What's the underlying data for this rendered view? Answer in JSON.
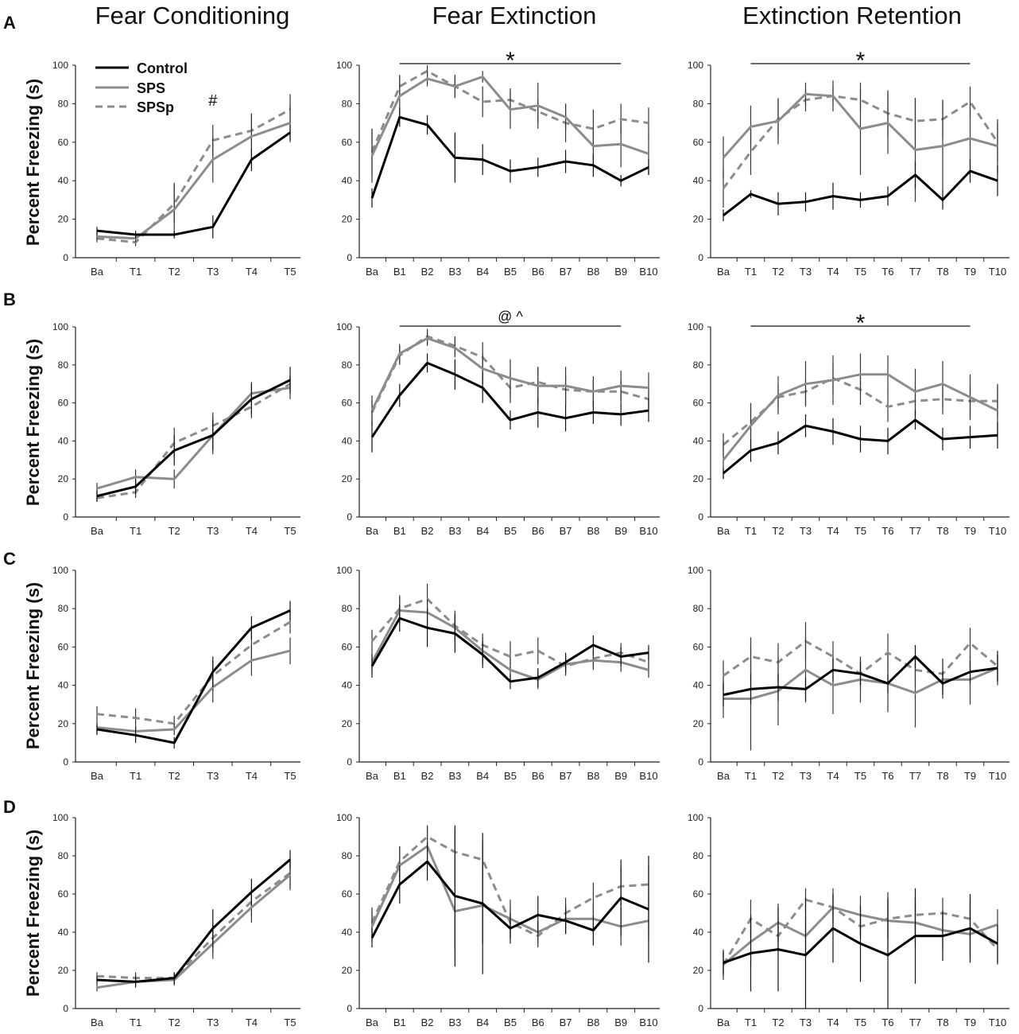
{
  "figure": {
    "column_titles": [
      "Fear Conditioning",
      "Fear Extinction",
      "Extinction Retention"
    ],
    "row_labels": [
      "A",
      "B",
      "C",
      "D"
    ],
    "ylabel": "Percent Freezing (s)",
    "legend": {
      "entries": [
        "Control",
        "SPS",
        "SPSp"
      ]
    },
    "colors": {
      "Control": "#000000",
      "SPS": "#8c8c8c",
      "SPSp": "#8c8c8c"
    },
    "ylim": [
      0,
      100
    ],
    "yticks": [
      "0",
      "20",
      "40",
      "60",
      "80",
      "100"
    ]
  },
  "chart_data": [
    {
      "id": "A1",
      "type": "line",
      "title": "Fear Conditioning",
      "row": "A",
      "categories": [
        "Ba",
        "T1",
        "T2",
        "T3",
        "T4",
        "T5"
      ],
      "annotations": [
        {
          "text": "#",
          "at": "T3"
        }
      ],
      "series": [
        {
          "name": "Control",
          "values": [
            14,
            12,
            12,
            16,
            51,
            65
          ],
          "err": [
            2,
            2,
            2,
            6,
            6,
            4
          ]
        },
        {
          "name": "SPS",
          "values": [
            11,
            10,
            25,
            51,
            63,
            70
          ],
          "err": [
            2,
            2,
            14,
            12,
            12,
            10
          ]
        },
        {
          "name": "SPSp",
          "values": [
            10,
            8,
            28,
            61,
            66,
            77
          ],
          "err": [
            2,
            2,
            10,
            8,
            8,
            8
          ]
        }
      ]
    },
    {
      "id": "A2",
      "type": "line",
      "title": "Fear Extinction",
      "row": "A",
      "categories": [
        "Ba",
        "B1",
        "B2",
        "B3",
        "B4",
        "B5",
        "B6",
        "B7",
        "B8",
        "B9",
        "B10"
      ],
      "annotations": [
        {
          "text": "*",
          "span": [
            "B1",
            "B9"
          ]
        }
      ],
      "series": [
        {
          "name": "Control",
          "values": [
            31,
            73,
            69,
            52,
            51,
            45,
            47,
            50,
            48,
            40,
            47
          ],
          "err": [
            5,
            5,
            5,
            13,
            8,
            6,
            5,
            6,
            6,
            3,
            4
          ]
        },
        {
          "name": "SPS",
          "values": [
            53,
            84,
            93,
            89,
            94,
            77,
            79,
            73,
            58,
            59,
            54
          ],
          "err": [
            14,
            10,
            4,
            6,
            3,
            10,
            12,
            7,
            10,
            12,
            11
          ]
        },
        {
          "name": "SPSp",
          "values": [
            55,
            89,
            97,
            89,
            81,
            82,
            76,
            70,
            67,
            72,
            70
          ],
          "err": [
            12,
            6,
            3,
            6,
            8,
            6,
            6,
            10,
            10,
            8,
            8
          ]
        }
      ]
    },
    {
      "id": "A3",
      "type": "line",
      "title": "Extinction Retention",
      "row": "A",
      "categories": [
        "Ba",
        "T1",
        "T2",
        "T3",
        "T4",
        "T5",
        "T6",
        "T7",
        "T8",
        "T9",
        "T10"
      ],
      "annotations": [
        {
          "text": "*",
          "span": [
            "T1",
            "T9"
          ]
        }
      ],
      "series": [
        {
          "name": "Control",
          "values": [
            22,
            33,
            28,
            29,
            32,
            30,
            32,
            43,
            30,
            45,
            40
          ],
          "err": [
            3,
            2,
            6,
            5,
            7,
            4,
            5,
            7,
            5,
            6,
            8
          ]
        },
        {
          "name": "SPS",
          "values": [
            52,
            68,
            71,
            85,
            84,
            67,
            70,
            56,
            58,
            62,
            58
          ],
          "err": [
            11,
            11,
            12,
            6,
            8,
            24,
            16,
            27,
            24,
            19,
            14
          ]
        },
        {
          "name": "SPSp",
          "values": [
            36,
            55,
            72,
            82,
            84,
            82,
            75,
            71,
            72,
            81,
            60
          ],
          "err": [
            10,
            12,
            10,
            6,
            5,
            6,
            12,
            12,
            10,
            8,
            10
          ]
        }
      ]
    },
    {
      "id": "B1",
      "type": "line",
      "title": "Fear Conditioning",
      "row": "B",
      "categories": [
        "Ba",
        "T1",
        "T2",
        "T3",
        "T4",
        "T5"
      ],
      "annotations": [],
      "series": [
        {
          "name": "Control",
          "values": [
            11,
            16,
            35,
            43,
            62,
            72
          ],
          "err": [
            3,
            4,
            8,
            8,
            8,
            7
          ]
        },
        {
          "name": "SPS",
          "values": [
            15,
            21,
            20,
            43,
            65,
            68
          ],
          "err": [
            3,
            4,
            5,
            10,
            6,
            6
          ]
        },
        {
          "name": "SPSp",
          "values": [
            10,
            13,
            39,
            48,
            58,
            70
          ],
          "err": [
            2,
            3,
            8,
            7,
            6,
            4
          ]
        }
      ]
    },
    {
      "id": "B2",
      "type": "line",
      "title": "Fear Extinction",
      "row": "B",
      "categories": [
        "Ba",
        "B1",
        "B2",
        "B3",
        "B4",
        "B5",
        "B6",
        "B7",
        "B8",
        "B9",
        "B10"
      ],
      "annotations": [
        {
          "text": "@   ^",
          "span": [
            "B1",
            "B9"
          ]
        }
      ],
      "series": [
        {
          "name": "Control",
          "values": [
            42,
            64,
            81,
            75,
            68,
            51,
            55,
            52,
            55,
            54,
            56
          ],
          "err": [
            8,
            6,
            5,
            8,
            8,
            5,
            8,
            7,
            6,
            6,
            6
          ]
        },
        {
          "name": "SPS",
          "values": [
            56,
            86,
            94,
            89,
            78,
            73,
            69,
            69,
            66,
            69,
            68
          ],
          "err": [
            8,
            5,
            4,
            5,
            8,
            10,
            10,
            10,
            8,
            8,
            8
          ]
        },
        {
          "name": "SPSp",
          "values": [
            55,
            85,
            95,
            90,
            84,
            68,
            71,
            67,
            66,
            66,
            62
          ],
          "err": [
            6,
            5,
            4,
            5,
            8,
            8,
            8,
            8,
            6,
            6,
            6
          ]
        }
      ]
    },
    {
      "id": "B3",
      "type": "line",
      "title": "Extinction Retention",
      "row": "B",
      "categories": [
        "Ba",
        "T1",
        "T2",
        "T3",
        "T4",
        "T5",
        "T6",
        "T7",
        "T8",
        "T9",
        "T10"
      ],
      "annotations": [
        {
          "text": "*",
          "span": [
            "T1",
            "T9"
          ]
        }
      ],
      "series": [
        {
          "name": "Control",
          "values": [
            23,
            35,
            39,
            48,
            45,
            41,
            40,
            51,
            41,
            42,
            43
          ],
          "err": [
            3,
            6,
            6,
            6,
            7,
            7,
            7,
            5,
            6,
            6,
            7
          ]
        },
        {
          "name": "SPS",
          "values": [
            30,
            48,
            64,
            70,
            72,
            75,
            75,
            66,
            70,
            63,
            56
          ],
          "err": [
            10,
            12,
            10,
            12,
            13,
            11,
            10,
            12,
            12,
            12,
            14
          ]
        },
        {
          "name": "SPSp",
          "values": [
            38,
            50,
            63,
            66,
            73,
            67,
            58,
            61,
            62,
            61,
            61
          ],
          "err": [
            6,
            8,
            6,
            7,
            8,
            8,
            8,
            8,
            8,
            8,
            8
          ]
        }
      ]
    },
    {
      "id": "C1",
      "type": "line",
      "title": "Fear Conditioning",
      "row": "C",
      "categories": [
        "Ba",
        "T1",
        "T2",
        "T3",
        "T4",
        "T5"
      ],
      "annotations": [],
      "series": [
        {
          "name": "Control",
          "values": [
            17,
            14,
            10,
            47,
            70,
            79
          ],
          "err": [
            3,
            4,
            3,
            8,
            6,
            5
          ]
        },
        {
          "name": "SPS",
          "values": [
            18,
            16,
            17,
            39,
            53,
            58
          ],
          "err": [
            3,
            3,
            3,
            8,
            8,
            7
          ]
        },
        {
          "name": "SPSp",
          "values": [
            25,
            23,
            20,
            45,
            61,
            73
          ],
          "err": [
            4,
            5,
            4,
            8,
            8,
            6
          ]
        }
      ]
    },
    {
      "id": "C2",
      "type": "line",
      "title": "Fear Extinction",
      "row": "C",
      "categories": [
        "Ba",
        "B1",
        "B2",
        "B3",
        "B4",
        "B5",
        "B6",
        "B7",
        "B8",
        "B9",
        "B10"
      ],
      "annotations": [],
      "series": [
        {
          "name": "Control",
          "values": [
            50,
            75,
            70,
            67,
            56,
            42,
            44,
            52,
            61,
            55,
            57
          ],
          "err": [
            6,
            7,
            10,
            10,
            7,
            4,
            5,
            5,
            5,
            5,
            4
          ]
        },
        {
          "name": "SPS",
          "values": [
            52,
            79,
            78,
            70,
            58,
            48,
            43,
            51,
            53,
            52,
            48
          ],
          "err": [
            5,
            7,
            7,
            7,
            7,
            6,
            5,
            5,
            5,
            5,
            4
          ]
        },
        {
          "name": "SPSp",
          "values": [
            63,
            80,
            85,
            71,
            61,
            55,
            58,
            50,
            54,
            57,
            52
          ],
          "err": [
            6,
            7,
            8,
            8,
            6,
            8,
            7,
            5,
            4,
            5,
            5
          ]
        }
      ]
    },
    {
      "id": "C3",
      "type": "line",
      "title": "Extinction Retention",
      "row": "C",
      "categories": [
        "Ba",
        "T1",
        "T2",
        "T3",
        "T4",
        "T5",
        "T6",
        "T7",
        "T8",
        "T9",
        "T10"
      ],
      "annotations": [],
      "series": [
        {
          "name": "Control",
          "values": [
            35,
            38,
            39,
            38,
            48,
            46,
            41,
            55,
            41,
            47,
            49
          ],
          "err": [
            6,
            8,
            7,
            6,
            6,
            6,
            5,
            6,
            6,
            6,
            7
          ]
        },
        {
          "name": "SPS",
          "values": [
            33,
            33,
            37,
            48,
            40,
            43,
            41,
            36,
            43,
            43,
            49
          ],
          "err": [
            10,
            27,
            18,
            17,
            15,
            12,
            15,
            18,
            10,
            13,
            9
          ]
        },
        {
          "name": "SPSp",
          "values": [
            45,
            55,
            52,
            63,
            55,
            46,
            57,
            48,
            46,
            62,
            50
          ],
          "err": [
            8,
            10,
            10,
            10,
            8,
            8,
            10,
            8,
            8,
            8,
            8
          ]
        }
      ]
    },
    {
      "id": "D1",
      "type": "line",
      "title": "Fear Conditioning",
      "row": "D",
      "categories": [
        "Ba",
        "T1",
        "T2",
        "T3",
        "T4",
        "T5"
      ],
      "annotations": [],
      "series": [
        {
          "name": "Control",
          "values": [
            15,
            14,
            16,
            42,
            61,
            78
          ],
          "err": [
            2,
            3,
            3,
            10,
            7,
            5
          ]
        },
        {
          "name": "SPS",
          "values": [
            11,
            14,
            15,
            34,
            53,
            70
          ],
          "err": [
            2,
            2,
            3,
            8,
            8,
            8
          ]
        },
        {
          "name": "SPSp",
          "values": [
            17,
            16,
            16,
            37,
            56,
            71
          ],
          "err": [
            2,
            3,
            3,
            8,
            8,
            8
          ]
        }
      ]
    },
    {
      "id": "D2",
      "type": "line",
      "title": "Fear Extinction",
      "row": "D",
      "categories": [
        "Ba",
        "B1",
        "B2",
        "B3",
        "B4",
        "B5",
        "B6",
        "B7",
        "B8",
        "B9",
        "B10"
      ],
      "annotations": [],
      "series": [
        {
          "name": "Control",
          "values": [
            37,
            65,
            77,
            59,
            55,
            42,
            49,
            46,
            41,
            58,
            52
          ],
          "err": [
            5,
            10,
            10,
            37,
            37,
            8,
            10,
            7,
            8,
            20,
            28
          ]
        },
        {
          "name": "SPS",
          "values": [
            43,
            75,
            85,
            51,
            54,
            47,
            40,
            47,
            47,
            43,
            46
          ],
          "err": [
            8,
            10,
            10,
            20,
            20,
            10,
            6,
            8,
            8,
            10,
            10
          ]
        },
        {
          "name": "SPSp",
          "values": [
            45,
            77,
            90,
            82,
            78,
            45,
            38,
            50,
            58,
            64,
            65
          ],
          "err": [
            8,
            8,
            6,
            12,
            10,
            8,
            6,
            8,
            8,
            10,
            10
          ]
        }
      ]
    },
    {
      "id": "D3",
      "type": "line",
      "title": "Extinction Retention",
      "row": "D",
      "categories": [
        "Ba",
        "T1",
        "T2",
        "T3",
        "T4",
        "T5",
        "T6",
        "T7",
        "T8",
        "T9",
        "T10"
      ],
      "annotations": [],
      "series": [
        {
          "name": "Control",
          "values": [
            24,
            29,
            31,
            28,
            42,
            34,
            28,
            38,
            38,
            42,
            34
          ],
          "err": [
            6,
            20,
            22,
            30,
            18,
            20,
            30,
            25,
            13,
            18,
            10
          ]
        },
        {
          "name": "SPS",
          "values": [
            23,
            35,
            45,
            38,
            53,
            49,
            46,
            45,
            41,
            39,
            44
          ],
          "err": [
            8,
            12,
            10,
            10,
            10,
            10,
            15,
            12,
            10,
            12,
            8
          ]
        },
        {
          "name": "SPSp",
          "values": [
            23,
            47,
            38,
            57,
            53,
            43,
            47,
            49,
            50,
            47,
            31
          ],
          "err": [
            6,
            10,
            8,
            6,
            6,
            6,
            10,
            10,
            8,
            10,
            8
          ]
        }
      ]
    }
  ]
}
